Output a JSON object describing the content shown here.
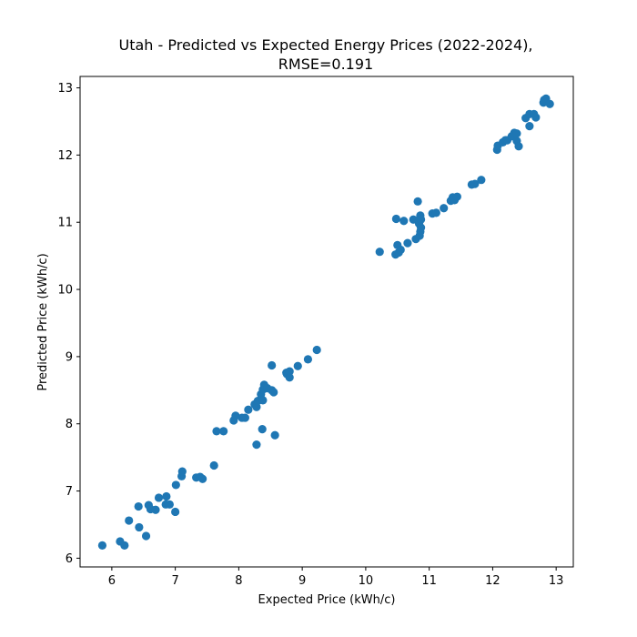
{
  "chart_data": {
    "type": "scatter",
    "title_lines": [
      "Utah - Predicted vs Expected Energy Prices (2022-2024),",
      "RMSE=0.191"
    ],
    "xlabel": "Expected Price (kWh/c)",
    "ylabel": "Predicted Price (kWh/c)",
    "xlim": [
      5.5,
      13.27
    ],
    "ylim": [
      5.87,
      13.17
    ],
    "xticks": [
      "6",
      "7",
      "8",
      "9",
      "10",
      "11",
      "12",
      "13"
    ],
    "yticks": [
      "6",
      "7",
      "8",
      "9",
      "10",
      "11",
      "12",
      "13"
    ],
    "grid": false,
    "legend": "none",
    "marker_color": "#1f77b4",
    "points": [
      [
        5.85,
        6.19
      ],
      [
        6.13,
        6.25
      ],
      [
        6.2,
        6.19
      ],
      [
        6.27,
        6.56
      ],
      [
        6.42,
        6.77
      ],
      [
        6.43,
        6.46
      ],
      [
        6.54,
        6.33
      ],
      [
        6.58,
        6.79
      ],
      [
        6.61,
        6.73
      ],
      [
        6.69,
        6.72
      ],
      [
        6.74,
        6.9
      ],
      [
        6.85,
        6.8
      ],
      [
        6.86,
        6.92
      ],
      [
        6.91,
        6.8
      ],
      [
        7.0,
        6.69
      ],
      [
        7.01,
        7.09
      ],
      [
        7.1,
        7.22
      ],
      [
        7.11,
        7.29
      ],
      [
        7.33,
        7.2
      ],
      [
        7.39,
        7.21
      ],
      [
        7.43,
        7.18
      ],
      [
        7.61,
        7.38
      ],
      [
        7.65,
        7.89
      ],
      [
        7.76,
        7.89
      ],
      [
        7.92,
        8.05
      ],
      [
        7.95,
        8.12
      ],
      [
        8.05,
        8.09
      ],
      [
        8.1,
        8.09
      ],
      [
        8.15,
        8.21
      ],
      [
        8.25,
        8.29
      ],
      [
        8.28,
        7.69
      ],
      [
        8.28,
        8.25
      ],
      [
        8.3,
        8.34
      ],
      [
        8.35,
        8.44
      ],
      [
        8.37,
        7.92
      ],
      [
        8.38,
        8.35
      ],
      [
        8.38,
        8.51
      ],
      [
        8.4,
        8.58
      ],
      [
        8.45,
        8.53
      ],
      [
        8.52,
        8.5
      ],
      [
        8.52,
        8.87
      ],
      [
        8.55,
        8.47
      ],
      [
        8.57,
        7.83
      ],
      [
        8.75,
        8.76
      ],
      [
        8.76,
        8.74
      ],
      [
        8.8,
        8.78
      ],
      [
        8.8,
        8.69
      ],
      [
        8.93,
        8.86
      ],
      [
        9.09,
        8.96
      ],
      [
        9.23,
        9.1
      ],
      [
        10.22,
        10.56
      ],
      [
        10.47,
        10.52
      ],
      [
        10.48,
        11.05
      ],
      [
        10.5,
        10.66
      ],
      [
        10.52,
        10.55
      ],
      [
        10.55,
        10.59
      ],
      [
        10.6,
        11.02
      ],
      [
        10.66,
        10.69
      ],
      [
        10.75,
        11.04
      ],
      [
        10.79,
        10.75
      ],
      [
        10.82,
        11.31
      ],
      [
        10.84,
        10.98
      ],
      [
        10.85,
        10.8
      ],
      [
        10.86,
        11.1
      ],
      [
        10.86,
        10.86
      ],
      [
        10.87,
        11.04
      ],
      [
        10.87,
        10.92
      ],
      [
        11.05,
        11.13
      ],
      [
        11.11,
        11.14
      ],
      [
        11.23,
        11.21
      ],
      [
        11.34,
        11.32
      ],
      [
        11.37,
        11.37
      ],
      [
        11.4,
        11.33
      ],
      [
        11.44,
        11.38
      ],
      [
        11.67,
        11.56
      ],
      [
        11.72,
        11.57
      ],
      [
        11.82,
        11.63
      ],
      [
        12.07,
        12.08
      ],
      [
        12.08,
        12.14
      ],
      [
        12.16,
        12.19
      ],
      [
        12.2,
        12.22
      ],
      [
        12.23,
        12.22
      ],
      [
        12.3,
        12.28
      ],
      [
        12.34,
        12.33
      ],
      [
        12.38,
        12.32
      ],
      [
        12.38,
        12.21
      ],
      [
        12.41,
        12.13
      ],
      [
        12.52,
        12.55
      ],
      [
        12.58,
        12.61
      ],
      [
        12.58,
        12.43
      ],
      [
        12.65,
        12.61
      ],
      [
        12.68,
        12.56
      ],
      [
        12.8,
        12.78
      ],
      [
        12.81,
        12.82
      ],
      [
        12.84,
        12.84
      ],
      [
        12.9,
        12.76
      ]
    ]
  }
}
